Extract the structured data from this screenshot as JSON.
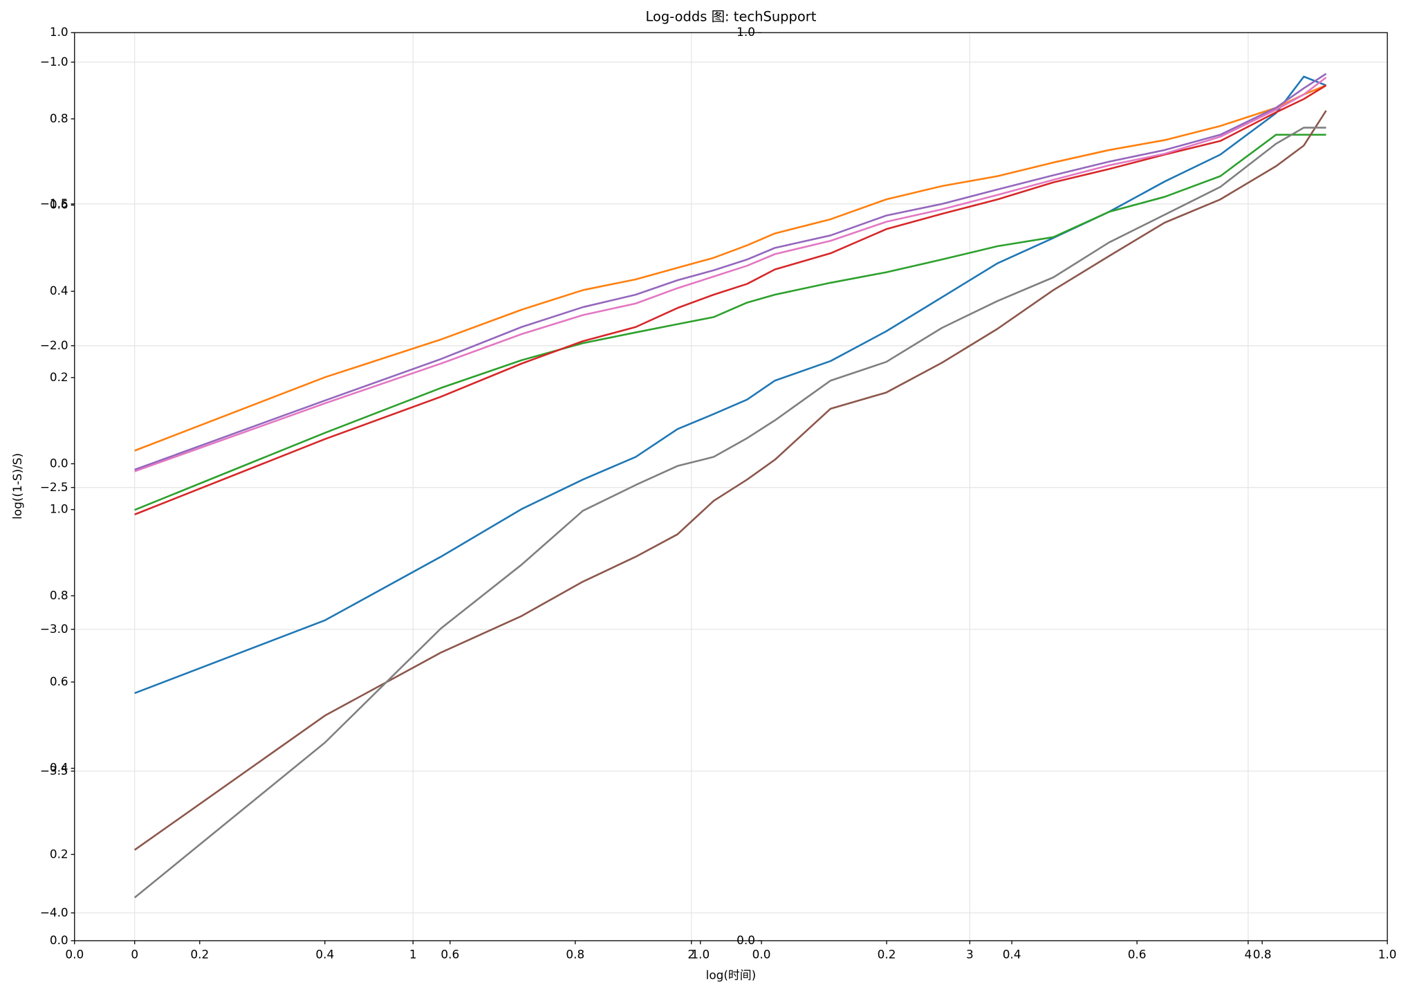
{
  "chart_data": [
    {
      "type": "line",
      "title": "Log-odds 图: techSupport",
      "x_label": "log(时间)",
      "y_label": "log((1-S)/S)",
      "grid": true,
      "xlim": [
        -0.216,
        4.5
      ],
      "ylim": [
        -4.098,
        -0.896
      ],
      "xticks": [
        0,
        1,
        2,
        3,
        4
      ],
      "yticks": [
        {
          "value": -1.0,
          "label": "−1.0"
        },
        {
          "value": -1.5,
          "label": "−1.5"
        },
        {
          "value": -2.0,
          "label": "−2.0"
        },
        {
          "value": -2.5,
          "label": "−2.5"
        },
        {
          "value": -3.0,
          "label": "−3.0"
        },
        {
          "value": -3.5,
          "label": "−3.5"
        },
        {
          "value": -4.0,
          "label": "−4.0"
        }
      ],
      "x": [
        0,
        0.684,
        1.1,
        1.39,
        1.61,
        1.8,
        1.95,
        2.08,
        2.2,
        2.3,
        2.5,
        2.7,
        2.9,
        3.1,
        3.3,
        3.5,
        3.7,
        3.9,
        4.1,
        4.2,
        4.28
      ],
      "series": [
        {
          "color": "#1f77b4",
          "values": [
            -3.225,
            -2.968,
            -2.744,
            -2.576,
            -2.472,
            -2.392,
            -2.294,
            -2.241,
            -2.19,
            -2.123,
            -2.054,
            -1.949,
            -1.829,
            -1.709,
            -1.62,
            -1.528,
            -1.421,
            -1.326,
            -1.18,
            -1.051,
            -1.082
          ]
        },
        {
          "color": "#ff7f0e",
          "values": [
            -2.37,
            -2.111,
            -1.978,
            -1.873,
            -1.804,
            -1.766,
            -1.725,
            -1.69,
            -1.646,
            -1.604,
            -1.554,
            -1.484,
            -1.437,
            -1.402,
            -1.354,
            -1.31,
            -1.275,
            -1.225,
            -1.161,
            -1.114,
            -1.082
          ]
        },
        {
          "color": "#2ca02c",
          "values": [
            -2.579,
            -2.307,
            -2.149,
            -2.051,
            -1.991,
            -1.953,
            -1.924,
            -1.899,
            -1.848,
            -1.82,
            -1.778,
            -1.741,
            -1.696,
            -1.649,
            -1.617,
            -1.528,
            -1.475,
            -1.402,
            -1.256,
            -1.256,
            -1.256
          ]
        },
        {
          "color": "#d62728",
          "values": [
            -2.595,
            -2.329,
            -2.18,
            -2.063,
            -1.984,
            -1.934,
            -1.867,
            -1.82,
            -1.782,
            -1.731,
            -1.674,
            -1.589,
            -1.535,
            -1.484,
            -1.424,
            -1.377,
            -1.326,
            -1.278,
            -1.177,
            -1.13,
            -1.082
          ]
        },
        {
          "color": "#9467bd",
          "values": [
            -2.437,
            -2.193,
            -2.047,
            -1.934,
            -1.864,
            -1.82,
            -1.769,
            -1.734,
            -1.696,
            -1.655,
            -1.611,
            -1.541,
            -1.5,
            -1.449,
            -1.399,
            -1.351,
            -1.31,
            -1.256,
            -1.161,
            -1.092,
            -1.041
          ]
        },
        {
          "color": "#8c564b",
          "values": [
            -3.778,
            -3.304,
            -3.082,
            -2.953,
            -2.832,
            -2.744,
            -2.665,
            -2.547,
            -2.472,
            -2.402,
            -2.222,
            -2.165,
            -2.06,
            -1.94,
            -1.804,
            -1.684,
            -1.566,
            -1.484,
            -1.367,
            -1.294,
            -1.171
          ]
        },
        {
          "color": "#e377c2",
          "values": [
            -2.443,
            -2.203,
            -2.063,
            -1.959,
            -1.892,
            -1.851,
            -1.797,
            -1.756,
            -1.718,
            -1.677,
            -1.63,
            -1.563,
            -1.519,
            -1.468,
            -1.415,
            -1.364,
            -1.323,
            -1.263,
            -1.168,
            -1.114,
            -1.054
          ]
        },
        {
          "color": "#7f7f7f",
          "values": [
            -3.946,
            -3.399,
            -2.997,
            -2.772,
            -2.582,
            -2.491,
            -2.424,
            -2.392,
            -2.326,
            -2.263,
            -2.123,
            -2.057,
            -1.937,
            -1.842,
            -1.759,
            -1.636,
            -1.538,
            -1.44,
            -1.288,
            -1.231,
            -1.231
          ]
        }
      ]
    },
    {
      "type": "blank",
      "xlim": [
        0,
        1
      ],
      "ylim": [
        0,
        1
      ],
      "xticks": [
        {
          "value": 0,
          "label": "0.0"
        },
        {
          "value": 1,
          "label": "1.0"
        }
      ],
      "yticks": [
        {
          "value": 0,
          "label": "0.0"
        },
        {
          "value": 1,
          "label": "1.0"
        }
      ]
    },
    {
      "type": "blank",
      "ylim": [
        0,
        1
      ],
      "yticks": [
        {
          "value": 0,
          "label": "0.0"
        },
        0.2,
        0.4,
        0.6,
        0.8
      ]
    },
    {
      "type": "blank",
      "xlim": [
        0,
        1
      ],
      "ylim": [
        0,
        1
      ],
      "xticks": [
        0.2,
        0.4,
        0.6,
        0.8,
        {
          "value": 1,
          "label": "1.0"
        }
      ],
      "yticks": [
        0.2,
        0.4,
        0.6,
        0.8,
        {
          "value": 1,
          "label": "1.0"
        }
      ]
    },
    {
      "type": "blank",
      "xlim": [
        0,
        1
      ],
      "xticks": [
        {
          "value": 0,
          "label": "0.0"
        },
        0.2,
        0.4,
        0.6,
        0.8
      ]
    },
    {
      "type": "blank",
      "ylim": [
        0,
        1
      ],
      "yticks": [
        {
          "value": 0,
          "label": "0.0"
        },
        {
          "value": 1,
          "label": "1.0"
        }
      ]
    }
  ]
}
